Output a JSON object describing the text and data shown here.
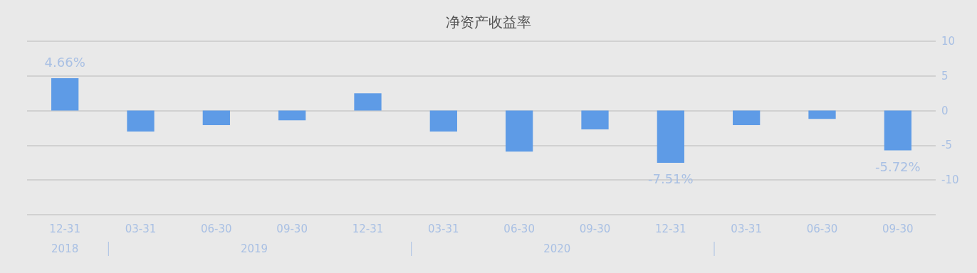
{
  "chart_data": {
    "type": "bar",
    "title": "净资产收益率",
    "categories": [
      "12-31",
      "03-31",
      "06-30",
      "09-30",
      "12-31",
      "03-31",
      "06-30",
      "09-30",
      "12-31",
      "03-31",
      "06-30",
      "09-30"
    ],
    "values": [
      4.66,
      -3.0,
      -2.1,
      -1.4,
      2.5,
      -3.0,
      -5.9,
      -2.7,
      -7.51,
      -2.1,
      -1.2,
      -5.72
    ],
    "value_labels": [
      "4.66%",
      null,
      null,
      null,
      null,
      null,
      null,
      null,
      "-7.51%",
      null,
      null,
      "-5.72%"
    ],
    "color": "#5e9be6",
    "ylim": [
      -15,
      10
    ],
    "yticks": [
      {
        "value": -15,
        "label": null
      },
      -10,
      -5,
      0,
      5,
      10
    ],
    "grid": "y",
    "annotations": [
      "2018",
      "2019",
      "2020"
    ]
  }
}
